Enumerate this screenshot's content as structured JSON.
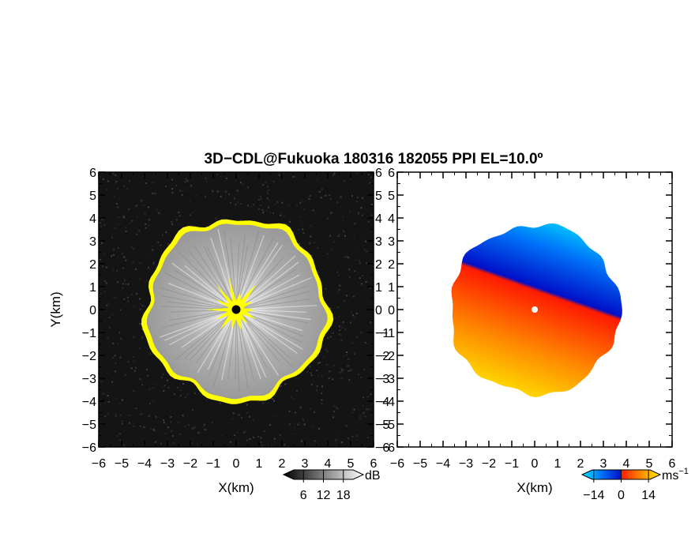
{
  "chart_data": {
    "type": "heatmap",
    "title": "3D−CDL@Fukuoka 180316 182055 PPI EL=10.0º",
    "panels": [
      {
        "name": "reflectivity",
        "xlabel": "X(km)",
        "ylabel": "Y(km)",
        "xlim": [
          -6,
          6
        ],
        "ylim": [
          -6,
          6
        ],
        "xticks": [
          "−6",
          "−5",
          "−4",
          "−3",
          "−2",
          "−1",
          "0",
          "1",
          "2",
          "3",
          "4",
          "5",
          "6"
        ],
        "yticks": [
          "6",
          "5",
          "4",
          "3",
          "2",
          "1",
          "0",
          "−1",
          "−2",
          "−3",
          "−4",
          "−5",
          "−6"
        ],
        "background": "#141414",
        "echo_color": "#bcbcbc",
        "edge_color": "#ffff00",
        "center_color": "#ffff00",
        "echo_radius_km": 3.8,
        "colorbar": {
          "unit": "dB",
          "ticks": [
            "6",
            "12",
            "18"
          ],
          "range": [
            0,
            24
          ]
        }
      },
      {
        "name": "doppler-velocity",
        "xlabel": "X(km)",
        "ylabel": "",
        "xlim": [
          -6,
          6
        ],
        "ylim": [
          -6,
          6
        ],
        "xticks": [
          "−6",
          "−5",
          "−4",
          "−3",
          "−2",
          "−1",
          "0",
          "1",
          "2",
          "3",
          "4",
          "5",
          "6"
        ],
        "yticks": [
          "6",
          "5",
          "4",
          "3",
          "2",
          "1",
          "0",
          "−1",
          "−2",
          "−3",
          "−4",
          "−5",
          "−6"
        ],
        "echo_radius_km": 3.7,
        "negative_colors": [
          "#00e8ff",
          "#0050f0",
          "#0010c8"
        ],
        "positive_colors": [
          "#ff1a00",
          "#ff7a00",
          "#ffd200",
          "#fff000"
        ],
        "colorbar": {
          "unit": "ms",
          "unit_exponent": "−1",
          "ticks": [
            "−14",
            "0",
            "14"
          ],
          "range": [
            -20,
            20
          ]
        }
      }
    ]
  }
}
